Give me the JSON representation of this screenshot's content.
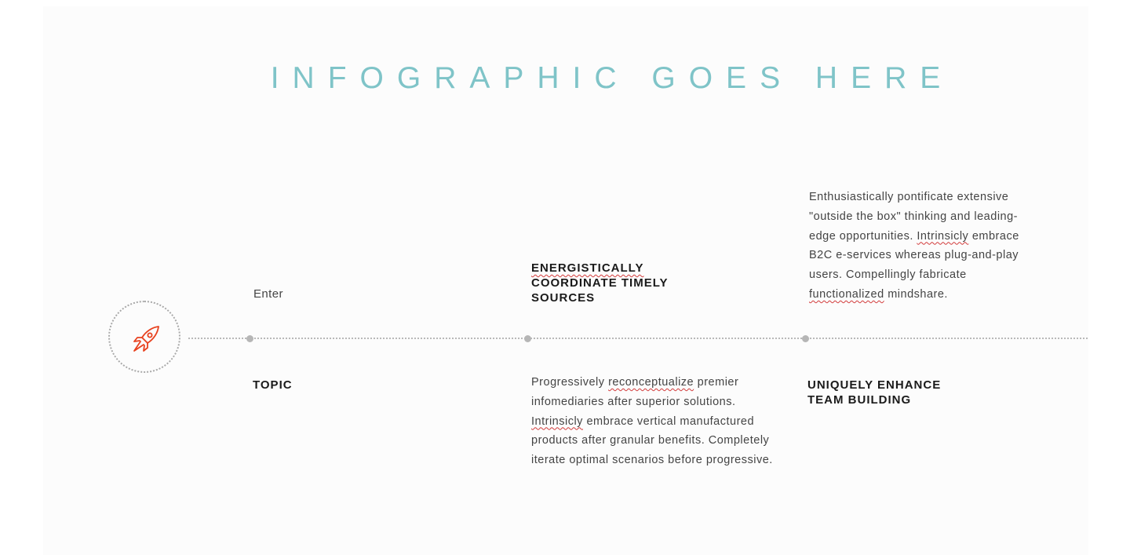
{
  "page": {
    "title": "INFOGRAPHIC GOES HERE"
  },
  "timeline": {
    "icon": "rocket-icon",
    "accent_color": "#e8411e",
    "title_color": "#7fc4c8",
    "stops": [
      {
        "top_text": "Enter",
        "bottom_heading": "TOPIC"
      },
      {
        "top_heading": "ENERGISTICALLY COORDINATE TIMELY SOURCES",
        "top_heading_parts": [
          "ENERGISTICALLY",
          "COORDINATE TIMELY",
          "SOURCES"
        ],
        "bottom_paragraph_parts": [
          "Progressively ",
          "reconceptualize",
          " premier infomediaries after superior solutions. ",
          "Intrinsicly",
          " embrace vertical manufactured products after granular benefits. Completely iterate optimal scenarios before progressive."
        ]
      },
      {
        "top_paragraph_parts": [
          "Enthusiastically pontificate extensive \"outside the box\" thinking and leading-edge opportunities. ",
          "Intrinsicly",
          " embrace B2C e-services whereas plug-and-play users. Compellingly fabricate ",
          "functionalized",
          " mindshare."
        ],
        "bottom_heading_parts": [
          "UNIQUELY ENHANCE",
          "TEAM BUILDING"
        ]
      }
    ]
  }
}
